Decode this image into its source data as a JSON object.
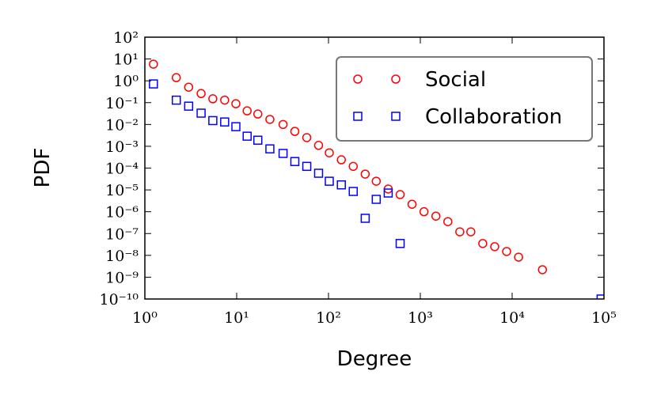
{
  "chart_data": {
    "type": "scatter",
    "xlabel": "Degree",
    "ylabel": "PDF",
    "xscale": "log",
    "yscale": "log",
    "xlim": [
      1,
      100000
    ],
    "ylim": [
      1e-10,
      100
    ],
    "xticks": [
      {
        "value": 1,
        "label": "10⁰"
      },
      {
        "value": 10,
        "label": "10¹"
      },
      {
        "value": 100,
        "label": "10²"
      },
      {
        "value": 1000,
        "label": "10³"
      },
      {
        "value": 10000,
        "label": "10⁴"
      },
      {
        "value": 100000,
        "label": "10⁵"
      }
    ],
    "yticks": [
      {
        "value": 1e-10,
        "label": "10⁻¹⁰"
      },
      {
        "value": 1e-09,
        "label": "10⁻⁹"
      },
      {
        "value": 1e-08,
        "label": "10⁻⁸"
      },
      {
        "value": 1e-07,
        "label": "10⁻⁷"
      },
      {
        "value": 1e-06,
        "label": "10⁻⁶"
      },
      {
        "value": 1e-05,
        "label": "10⁻⁵"
      },
      {
        "value": 0.0001,
        "label": "10⁻⁴"
      },
      {
        "value": 0.001,
        "label": "10⁻³"
      },
      {
        "value": 0.01,
        "label": "10⁻²"
      },
      {
        "value": 0.1,
        "label": "10⁻¹"
      },
      {
        "value": 1,
        "label": "10⁰"
      },
      {
        "value": 10,
        "label": "10¹"
      },
      {
        "value": 100,
        "label": "10²"
      }
    ],
    "legend": "upper right",
    "series": [
      {
        "name": "Social",
        "color": "#ff0000",
        "marker": "circle",
        "x": [
          1.24,
          2.2,
          3.0,
          4.1,
          5.5,
          7.4,
          9.8,
          13,
          17,
          23,
          32,
          43,
          58,
          78,
          102,
          138,
          186,
          251,
          331,
          447,
          603,
          813,
          1096,
          1479,
          1995,
          2692,
          3548,
          4786,
          6457,
          8710,
          11749,
          21380
        ],
        "values": [
          5.8,
          1.4,
          0.51,
          0.26,
          0.15,
          0.13,
          0.089,
          0.042,
          0.03,
          0.017,
          0.01,
          0.0048,
          0.0025,
          0.0011,
          0.0005,
          0.00024,
          0.00012,
          5.3e-05,
          2.5e-05,
          1.1e-05,
          6.1e-06,
          2.2e-06,
          1e-06,
          6.3e-07,
          3.5e-07,
          1.2e-07,
          1.2e-07,
          3.5e-08,
          2.5e-08,
          1.5e-08,
          8.3e-09,
          2.2e-09
        ]
      },
      {
        "name": "Collaboration",
        "color": "#0000ff",
        "marker": "square",
        "x": [
          1.24,
          2.2,
          3.0,
          4.1,
          5.5,
          7.4,
          9.8,
          13,
          17,
          23,
          32,
          43,
          58,
          78,
          102,
          138,
          186,
          251,
          331,
          447,
          603,
          93000
        ],
        "values": [
          0.72,
          0.13,
          0.069,
          0.033,
          0.015,
          0.013,
          0.0079,
          0.0029,
          0.0019,
          0.00076,
          0.00047,
          0.0002,
          0.00012,
          5.8e-05,
          2.5e-05,
          1.7e-05,
          8.5e-06,
          5e-07,
          3.7e-06,
          7.2e-06,
          3.5e-08,
          1e-10
        ]
      }
    ]
  }
}
